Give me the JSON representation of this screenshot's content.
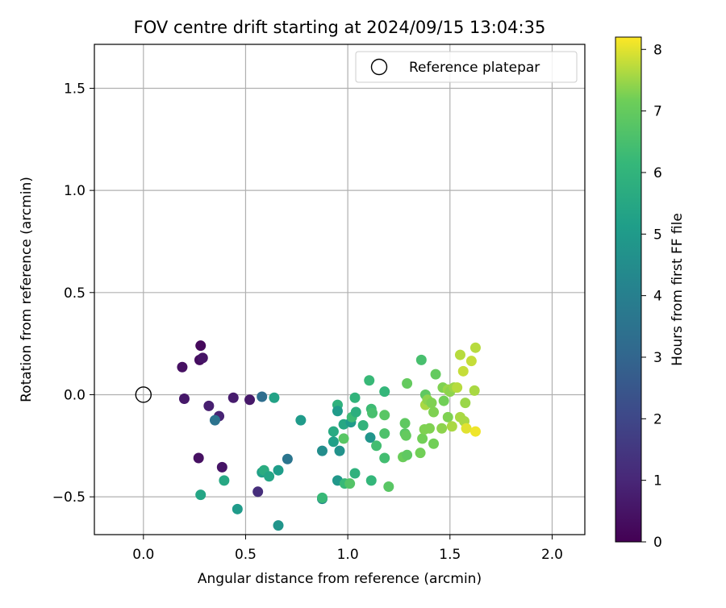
{
  "chart_data": {
    "type": "scatter",
    "title": "FOV centre drift starting at 2024/09/15 13:04:35",
    "xlabel": "Angular distance from reference (arcmin)",
    "ylabel": "Rotation from reference (arcmin)",
    "xlim": [
      -0.24,
      2.16
    ],
    "ylim": [
      -0.685,
      1.715
    ],
    "xticks": [
      {
        "value": 0.0,
        "label": "0.0"
      },
      {
        "value": 0.5,
        "label": "0.5"
      },
      {
        "value": 1.0,
        "label": "1.0"
      },
      {
        "value": 1.5,
        "label": "1.5"
      },
      {
        "value": 2.0,
        "label": "2.0"
      }
    ],
    "yticks": [
      {
        "value": -0.5,
        "label": "−0.5"
      },
      {
        "value": 0.0,
        "label": "0.0"
      },
      {
        "value": 0.5,
        "label": "0.5"
      },
      {
        "value": 1.0,
        "label": "1.0"
      },
      {
        "value": 1.5,
        "label": "1.5"
      }
    ],
    "grid": true,
    "legend": {
      "placement": "top-right",
      "entries": [
        {
          "label": "Reference platepar",
          "marker": "open-circle"
        }
      ]
    },
    "reference_point": {
      "x": 0.0,
      "y": 0.0
    },
    "colorbar": {
      "label": "Hours from first FF file",
      "colormap": "viridis",
      "range": [
        0,
        8.2
      ],
      "ticks": [
        "0",
        "1",
        "2",
        "3",
        "4",
        "5",
        "6",
        "7",
        "8"
      ]
    },
    "series": [
      {
        "points": [
          {
            "x": 0.19,
            "y": 0.135,
            "c": 0.4
          },
          {
            "x": 0.275,
            "y": 0.17,
            "c": 0.3
          },
          {
            "x": 0.28,
            "y": 0.24,
            "c": 0.2
          },
          {
            "x": 0.29,
            "y": 0.18,
            "c": 0.5
          },
          {
            "x": 0.2,
            "y": -0.02,
            "c": 0.6
          },
          {
            "x": 0.32,
            "y": -0.055,
            "c": 0.8
          },
          {
            "x": 0.37,
            "y": -0.105,
            "c": 0.9
          },
          {
            "x": 0.35,
            "y": -0.125,
            "c": 3.5
          },
          {
            "x": 0.44,
            "y": -0.015,
            "c": 0.7
          },
          {
            "x": 0.52,
            "y": -0.025,
            "c": 0.6
          },
          {
            "x": 0.58,
            "y": -0.01,
            "c": 3.3
          },
          {
            "x": 0.64,
            "y": -0.015,
            "c": 5.3
          },
          {
            "x": 0.27,
            "y": -0.31,
            "c": 0.4
          },
          {
            "x": 0.385,
            "y": -0.355,
            "c": 0.5
          },
          {
            "x": 0.56,
            "y": -0.475,
            "c": 1.2
          },
          {
            "x": 0.28,
            "y": -0.49,
            "c": 5.4
          },
          {
            "x": 0.395,
            "y": -0.42,
            "c": 5.5
          },
          {
            "x": 0.46,
            "y": -0.56,
            "c": 5.0
          },
          {
            "x": 0.58,
            "y": -0.38,
            "c": 5.2
          },
          {
            "x": 0.59,
            "y": -0.37,
            "c": 5.7
          },
          {
            "x": 0.615,
            "y": -0.4,
            "c": 5.4
          },
          {
            "x": 0.66,
            "y": -0.37,
            "c": 5.1
          },
          {
            "x": 0.66,
            "y": -0.64,
            "c": 4.8
          },
          {
            "x": 0.705,
            "y": -0.315,
            "c": 3.6
          },
          {
            "x": 0.77,
            "y": -0.125,
            "c": 5.0
          },
          {
            "x": 0.875,
            "y": -0.275,
            "c": 4.5
          },
          {
            "x": 0.875,
            "y": -0.51,
            "c": 4.3
          },
          {
            "x": 0.875,
            "y": -0.505,
            "c": 6.2
          },
          {
            "x": 0.93,
            "y": -0.18,
            "c": 5.6
          },
          {
            "x": 0.93,
            "y": -0.23,
            "c": 5.2
          },
          {
            "x": 0.95,
            "y": -0.05,
            "c": 5.9
          },
          {
            "x": 0.95,
            "y": -0.08,
            "c": 5.0
          },
          {
            "x": 0.95,
            "y": -0.42,
            "c": 4.9
          },
          {
            "x": 0.96,
            "y": -0.275,
            "c": 4.7
          },
          {
            "x": 0.98,
            "y": -0.145,
            "c": 5.5
          },
          {
            "x": 0.98,
            "y": -0.215,
            "c": 6.8
          },
          {
            "x": 0.985,
            "y": -0.435,
            "c": 6.2
          },
          {
            "x": 1.01,
            "y": -0.435,
            "c": 6.7
          },
          {
            "x": 1.015,
            "y": -0.135,
            "c": 5.0
          },
          {
            "x": 1.02,
            "y": -0.11,
            "c": 6.3
          },
          {
            "x": 1.035,
            "y": -0.015,
            "c": 6.0
          },
          {
            "x": 1.035,
            "y": -0.385,
            "c": 5.9
          },
          {
            "x": 1.04,
            "y": -0.085,
            "c": 5.8
          },
          {
            "x": 1.075,
            "y": -0.15,
            "c": 6.0
          },
          {
            "x": 1.105,
            "y": 0.07,
            "c": 6.2
          },
          {
            "x": 1.11,
            "y": -0.21,
            "c": 4.8
          },
          {
            "x": 1.115,
            "y": -0.07,
            "c": 6.3
          },
          {
            "x": 1.115,
            "y": -0.42,
            "c": 6.1
          },
          {
            "x": 1.12,
            "y": -0.09,
            "c": 6.5
          },
          {
            "x": 1.14,
            "y": -0.25,
            "c": 6.4
          },
          {
            "x": 1.18,
            "y": 0.015,
            "c": 6.1
          },
          {
            "x": 1.18,
            "y": -0.1,
            "c": 6.8
          },
          {
            "x": 1.18,
            "y": -0.19,
            "c": 6.6
          },
          {
            "x": 1.18,
            "y": -0.31,
            "c": 6.4
          },
          {
            "x": 1.2,
            "y": -0.45,
            "c": 6.8
          },
          {
            "x": 1.27,
            "y": -0.305,
            "c": 7.1
          },
          {
            "x": 1.28,
            "y": -0.14,
            "c": 6.9
          },
          {
            "x": 1.28,
            "y": -0.19,
            "c": 6.8
          },
          {
            "x": 1.285,
            "y": -0.2,
            "c": 7.0
          },
          {
            "x": 1.29,
            "y": -0.295,
            "c": 6.9
          },
          {
            "x": 1.29,
            "y": 0.055,
            "c": 7.0
          },
          {
            "x": 1.355,
            "y": -0.285,
            "c": 7.2
          },
          {
            "x": 1.36,
            "y": 0.17,
            "c": 6.5
          },
          {
            "x": 1.365,
            "y": -0.215,
            "c": 7.2
          },
          {
            "x": 1.375,
            "y": -0.17,
            "c": 7.3
          },
          {
            "x": 1.38,
            "y": 0.0,
            "c": 6.9
          },
          {
            "x": 1.38,
            "y": -0.05,
            "c": 7.6
          },
          {
            "x": 1.39,
            "y": -0.025,
            "c": 7.4
          },
          {
            "x": 1.4,
            "y": -0.165,
            "c": 7.3
          },
          {
            "x": 1.41,
            "y": -0.04,
            "c": 7.3
          },
          {
            "x": 1.42,
            "y": -0.085,
            "c": 7.3
          },
          {
            "x": 1.42,
            "y": -0.24,
            "c": 7.2
          },
          {
            "x": 1.43,
            "y": 0.1,
            "c": 7.0
          },
          {
            "x": 1.46,
            "y": -0.165,
            "c": 7.4
          },
          {
            "x": 1.465,
            "y": 0.035,
            "c": 7.3
          },
          {
            "x": 1.47,
            "y": -0.03,
            "c": 7.2
          },
          {
            "x": 1.49,
            "y": -0.11,
            "c": 7.3
          },
          {
            "x": 1.49,
            "y": 0.025,
            "c": 7.5
          },
          {
            "x": 1.5,
            "y": 0.015,
            "c": 7.4
          },
          {
            "x": 1.51,
            "y": -0.155,
            "c": 7.6
          },
          {
            "x": 1.52,
            "y": 0.035,
            "c": 7.5
          },
          {
            "x": 1.535,
            "y": 0.035,
            "c": 7.7
          },
          {
            "x": 1.55,
            "y": -0.11,
            "c": 7.6
          },
          {
            "x": 1.55,
            "y": 0.195,
            "c": 7.7
          },
          {
            "x": 1.565,
            "y": 0.115,
            "c": 7.8
          },
          {
            "x": 1.57,
            "y": -0.13,
            "c": 7.6
          },
          {
            "x": 1.575,
            "y": -0.04,
            "c": 7.5
          },
          {
            "x": 1.58,
            "y": -0.165,
            "c": 8.0
          },
          {
            "x": 1.605,
            "y": 0.165,
            "c": 7.8
          },
          {
            "x": 1.62,
            "y": 0.02,
            "c": 7.6
          },
          {
            "x": 1.625,
            "y": 0.23,
            "c": 7.7
          },
          {
            "x": 1.625,
            "y": -0.18,
            "c": 8.1
          }
        ]
      }
    ]
  }
}
